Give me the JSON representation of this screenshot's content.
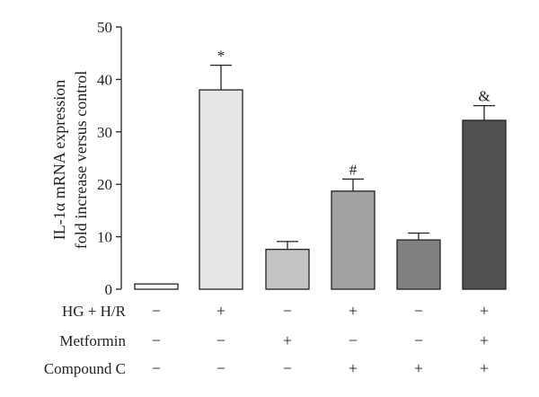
{
  "chart_data": {
    "type": "bar",
    "ylabel_lines": [
      "IL-1α mRNA expression",
      "fold increase versus control"
    ],
    "ylim": [
      0,
      50
    ],
    "yticks": [
      0,
      10,
      20,
      30,
      40,
      50
    ],
    "grid": false,
    "bars": [
      {
        "value": 1.0,
        "error": 0,
        "annotation": "",
        "color": "#ffffff"
      },
      {
        "value": 38.0,
        "error": 4.7,
        "annotation": "*",
        "color": "#e5e7e7"
      },
      {
        "value": 7.6,
        "error": 1.5,
        "annotation": "",
        "color": "#c3c4c6"
      },
      {
        "value": 18.7,
        "error": 2.3,
        "annotation": "#",
        "color": "#a1a2a4"
      },
      {
        "value": 9.4,
        "error": 1.3,
        "annotation": "",
        "color": "#7f8082"
      },
      {
        "value": 32.2,
        "error": 2.8,
        "annotation": "&",
        "color": "#515053"
      }
    ],
    "treatments": [
      {
        "label": "HG + H/R",
        "signs": [
          "−",
          "+",
          "−",
          "+",
          "−",
          "+"
        ]
      },
      {
        "label": "Metformin",
        "signs": [
          "−",
          "−",
          "+",
          "−",
          "−",
          "+"
        ]
      },
      {
        "label": "Compound C",
        "signs": [
          "−",
          "−",
          "−",
          "+",
          "+",
          "+"
        ]
      }
    ]
  }
}
